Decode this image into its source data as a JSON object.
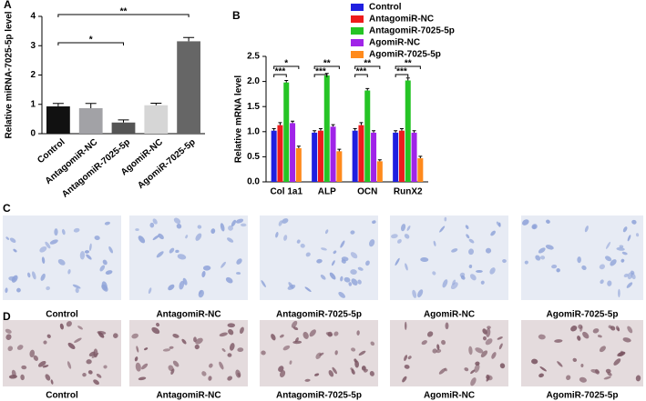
{
  "chart_data": [
    {
      "type": "bar",
      "panel_label": "A",
      "ylabel": "Relative miRNA-7025-5p level",
      "categories": [
        "Control",
        "AntagomiR-NC",
        "AntagomiR-7025-5p",
        "AgomiR-NC",
        "AgomiR-7025-5p"
      ],
      "values": [
        0.93,
        0.87,
        0.38,
        0.97,
        3.15
      ],
      "errors": [
        0.1,
        0.16,
        0.09,
        0.07,
        0.13
      ],
      "colors": [
        "#111111",
        "#a2a2a6",
        "#555555",
        "#d6d6d6",
        "#666666"
      ],
      "ylim": [
        0,
        4
      ],
      "yticks": [
        0,
        1,
        2,
        3,
        4
      ],
      "annotations": [
        {
          "text": "*",
          "between": [
            "Control",
            "AntagomiR-7025-5p"
          ]
        },
        {
          "text": "**",
          "between": [
            "Control",
            "AgomiR-7025-5p"
          ]
        }
      ]
    },
    {
      "type": "grouped_bar",
      "panel_label": "B",
      "ylabel": "Relative mRNA level",
      "categories": [
        "Col 1a1",
        "ALP",
        "OCN",
        "RunX2"
      ],
      "series": [
        {
          "name": "Control",
          "color": "#1f1fe0",
          "values": [
            1.02,
            0.98,
            1.02,
            0.98
          ],
          "errors": [
            0.04,
            0.04,
            0.04,
            0.04
          ]
        },
        {
          "name": "AntagomiR-NC",
          "color": "#ee1c1c",
          "values": [
            1.13,
            1.02,
            1.13,
            1.02
          ],
          "errors": [
            0.05,
            0.04,
            0.05,
            0.04
          ]
        },
        {
          "name": "AntagomiR-7025-5p",
          "color": "#25c425",
          "values": [
            1.98,
            2.12,
            1.82,
            2.02
          ],
          "errors": [
            0.04,
            0.04,
            0.04,
            0.05
          ]
        },
        {
          "name": "AgomiR-NC",
          "color": "#a024e8",
          "values": [
            1.17,
            1.1,
            0.98,
            0.98
          ],
          "errors": [
            0.04,
            0.04,
            0.04,
            0.04
          ]
        },
        {
          "name": "AgomiR-7025-5p",
          "color": "#ff8a1c",
          "values": [
            0.67,
            0.61,
            0.41,
            0.47
          ],
          "errors": [
            0.04,
            0.04,
            0.03,
            0.04
          ]
        }
      ],
      "ylim": [
        0,
        2.5
      ],
      "yticks": [
        {
          "value": 0,
          "label": "0.0"
        },
        {
          "value": 0.5,
          "label": "0.5"
        },
        {
          "value": 1,
          "label": "1.0"
        },
        {
          "value": 1.5,
          "label": "1.5"
        },
        {
          "value": 2,
          "label": "2.0"
        },
        {
          "value": 2.5,
          "label": "2.5"
        }
      ],
      "legend": "top-right",
      "annotations": [
        {
          "category": "Col 1a1",
          "text": "***",
          "between": [
            "Control",
            "AntagomiR-7025-5p"
          ]
        },
        {
          "category": "Col 1a1",
          "text": "*",
          "between": [
            "Control",
            "AgomiR-7025-5p"
          ]
        },
        {
          "category": "ALP",
          "text": "***",
          "between": [
            "Control",
            "AntagomiR-7025-5p"
          ]
        },
        {
          "category": "ALP",
          "text": "**",
          "between": [
            "Control",
            "AgomiR-7025-5p"
          ]
        },
        {
          "category": "OCN",
          "text": "***",
          "between": [
            "Control",
            "AntagomiR-7025-5p"
          ]
        },
        {
          "category": "OCN",
          "text": "**",
          "between": [
            "Control",
            "AgomiR-7025-5p"
          ]
        },
        {
          "category": "RunX2",
          "text": "***",
          "between": [
            "Control",
            "AntagomiR-7025-5p"
          ]
        },
        {
          "category": "RunX2",
          "text": "**",
          "between": [
            "Control",
            "AgomiR-7025-5p"
          ]
        }
      ]
    }
  ],
  "image_panels": [
    {
      "label": "C",
      "background": "#e7ebf4",
      "cell_color": "#8ea2d8",
      "captions": [
        "Control",
        "AntagomiR-NC",
        "AntagomiR-7025-5p",
        "AgomiR-NC",
        "AgomiR-7025-5p"
      ]
    },
    {
      "label": "D",
      "background": "#e4dbdd",
      "cell_color": "#7a5562",
      "captions": [
        "Control",
        "AntagomiR-NC",
        "AntagomiR-7025-5p",
        "AgomiR-NC",
        "AgomiR-7025-5p"
      ]
    }
  ]
}
